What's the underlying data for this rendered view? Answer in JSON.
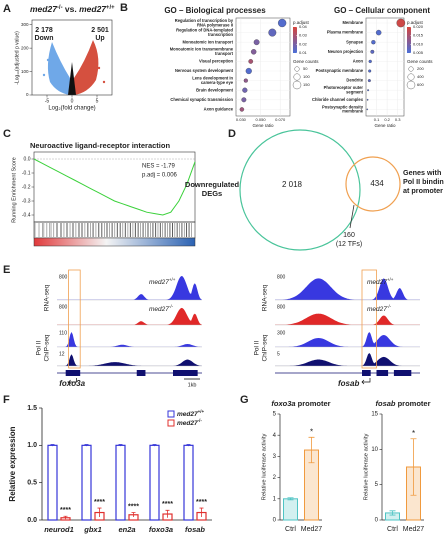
{
  "panel_a": {
    "label": "A",
    "title": {
      "gene_a": "med27",
      "sup_a": "-/-",
      "vs": " vs. ",
      "gene_b": "med27",
      "sup_b": "+/+"
    },
    "down_count": "2 178",
    "down_label": "Down",
    "up_count": "2 501",
    "up_label": "Up",
    "x_label": "Log₂(fold change)",
    "y_label": "-Log₁₀(adjusted p value)",
    "xlim": [
      -8,
      8
    ],
    "xticks": [
      -5,
      0,
      5
    ],
    "ylim": [
      0,
      320
    ],
    "yticks": [
      0,
      100,
      200,
      300
    ]
  },
  "panel_b": {
    "label": "B",
    "plots": [
      {
        "title": "GO – Biological processes",
        "terms": [
          [
            "Regulation of transcription by",
            "RNA polymerase II"
          ],
          [
            "Regulation of DNA-templated",
            "transcription"
          ],
          [
            "Monoatomic ion transport"
          ],
          [
            "Monoatomic ion transmembrane",
            "transport"
          ],
          [
            "Visual perception"
          ],
          [
            "Nervous system development"
          ],
          [
            "Lens development in",
            "camera-type eye"
          ],
          [
            "Brain development"
          ],
          [
            "Chemical synaptic transmission"
          ],
          [
            "Axon guidance"
          ]
        ],
        "gene_ratio": [
          0.072,
          0.062,
          0.046,
          0.043,
          0.04,
          0.038,
          0.035,
          0.034,
          0.033,
          0.031
        ],
        "p_adjust": [
          0.012,
          0.015,
          0.02,
          0.022,
          0.03,
          0.012,
          0.025,
          0.018,
          0.02,
          0.028
        ],
        "counts": [
          150,
          135,
          70,
          62,
          45,
          80,
          35,
          55,
          50,
          40
        ],
        "x_label": "Gene ratio",
        "xlim": [
          0.025,
          0.08
        ],
        "xticks": [
          {
            "value": 0.03,
            "label": "0.030"
          },
          {
            "value": 0.05,
            "label": "0.050"
          },
          {
            "value": 0.07,
            "label": "0.070"
          }
        ],
        "color_title": "p.adjust",
        "color_ticks": [
          0.04,
          0.03,
          0.02,
          0.01
        ],
        "size_title": "Gene counts",
        "size_ticks": [
          50,
          100,
          150
        ]
      },
      {
        "title": "GO – Cellular component",
        "terms": [
          [
            "Membrane"
          ],
          [
            "Plasma membrane"
          ],
          [
            "Synapse"
          ],
          [
            "Neuron projection"
          ],
          [
            "Axon"
          ],
          [
            "Postsynaptic membrane"
          ],
          [
            "Dendrite"
          ],
          [
            "Photoreceptor outer",
            "segment"
          ],
          [
            "Chloride channel complex"
          ],
          [
            "Postsynaptic density",
            "membrane"
          ]
        ],
        "gene_ratio": [
          0.33,
          0.12,
          0.07,
          0.06,
          0.04,
          0.035,
          0.032,
          0.02,
          0.015,
          0.012
        ],
        "p_adjust": [
          0.019,
          0.006,
          0.006,
          0.007,
          0.006,
          0.006,
          0.007,
          0.006,
          0.006,
          0.006
        ],
        "counts": [
          650,
          250,
          150,
          120,
          80,
          70,
          65,
          25,
          18,
          15
        ],
        "x_label": "Gene ratio",
        "xlim": [
          0,
          0.36
        ],
        "xticks": [
          0.1,
          0.2,
          0.3
        ],
        "color_title": "p.adjust",
        "color_ticks": [
          {
            "value": 0.02,
            "label": "0.020"
          },
          {
            "value": 0.015,
            "label": "0.015"
          },
          {
            "value": 0.01,
            "label": "0.010"
          },
          {
            "value": 0.005,
            "label": "0.005"
          }
        ],
        "size_title": "Gene counts",
        "size_ticks": [
          200,
          400,
          600
        ]
      }
    ]
  },
  "panel_c": {
    "label": "C",
    "type": "line",
    "title": "Neuroactive ligand-receptor interaction",
    "nes": "NES = -1.79",
    "padj": "p.adj = 0.006",
    "y_label": "Running Enrichment Score",
    "ylim": [
      -0.45,
      0.05
    ],
    "yticks": [
      {
        "value": 0,
        "label": "0.0"
      },
      -0.1,
      -0.2,
      -0.3,
      -0.4
    ],
    "values": [
      0,
      -0.03,
      -0.06,
      -0.09,
      -0.12,
      -0.15,
      -0.18,
      -0.21,
      -0.24,
      -0.27,
      -0.3,
      -0.32,
      -0.34,
      -0.36,
      -0.38,
      -0.39,
      -0.4,
      -0.38,
      -0.3,
      -0.18,
      -0.02
    ]
  },
  "panel_d": {
    "label": "D",
    "left_label": [
      "Downregulated",
      "DEGs"
    ],
    "left_count": "2 018",
    "right_count": "434",
    "overlap_count": "160",
    "overlap_note": "(12 TFs)",
    "right_label": [
      "Genes with",
      "Pol II binding",
      "at promoter"
    ]
  },
  "panel_e": {
    "label": "E",
    "rna_label": "RNA-seq",
    "chip_label": [
      "Pol II",
      "ChIP-seq"
    ],
    "wt": {
      "gene": "med27",
      "sup": "+/+"
    },
    "ko": {
      "gene": "med27",
      "sup": "-/-"
    },
    "loci": [
      {
        "gene": "foxo3a",
        "scales": [
          800,
          800,
          110,
          12
        ],
        "scale_bar": "1kb"
      },
      {
        "gene": "fosab",
        "scales": [
          800,
          800,
          300,
          5
        ]
      }
    ]
  },
  "panel_f": {
    "label": "F",
    "type": "bar",
    "y_label": "Relative expression",
    "categories": [
      "neurod1",
      "gbx1",
      "en2a",
      "foxo3a",
      "fosab"
    ],
    "series": [
      {
        "name": "med27",
        "sup": "+/+",
        "color": "#3535d8",
        "values": [
          1,
          1,
          1,
          1,
          1
        ],
        "errors": [
          0.01,
          0.01,
          0.01,
          0.01,
          0.01
        ]
      },
      {
        "name": "med27",
        "sup": "-/-",
        "color": "#e0302e",
        "values": [
          0.03,
          0.1,
          0.07,
          0.08,
          0.1
        ],
        "errors": [
          0.02,
          0.06,
          0.03,
          0.05,
          0.06
        ]
      }
    ],
    "annotations": [
      "****",
      "****",
      "****",
      "****",
      "****"
    ],
    "ylim": [
      0,
      1.5
    ],
    "yticks": [
      {
        "value": 0,
        "label": "0.0"
      },
      0.5,
      {
        "value": 1,
        "label": "1.0"
      },
      1.5
    ]
  },
  "panel_g": {
    "label": "G",
    "charts": [
      {
        "type": "bar",
        "gene": "foxo3a",
        "title": " promoter",
        "y_label": "Relative luciferase activity",
        "categories": [
          "Ctrl",
          "Med27"
        ],
        "colors": [
          "#4fc4c4",
          "#f09a3e"
        ],
        "values": [
          1,
          3.3
        ],
        "errors": [
          0.05,
          0.6
        ],
        "annotation": "*",
        "ylim": [
          0,
          5
        ],
        "yticks": [
          0,
          1,
          2,
          3,
          4,
          5
        ]
      },
      {
        "type": "bar",
        "gene": "fosab",
        "title": " promoter",
        "y_label": "Relative luciferase activity",
        "categories": [
          "Ctrl",
          "Med27"
        ],
        "colors": [
          "#4fc4c4",
          "#f09a3e"
        ],
        "values": [
          1,
          7.5
        ],
        "errors": [
          0.3,
          4
        ],
        "annotation": "*",
        "ylim": [
          0,
          15
        ],
        "yticks": [
          0,
          5,
          10,
          15
        ]
      }
    ]
  }
}
